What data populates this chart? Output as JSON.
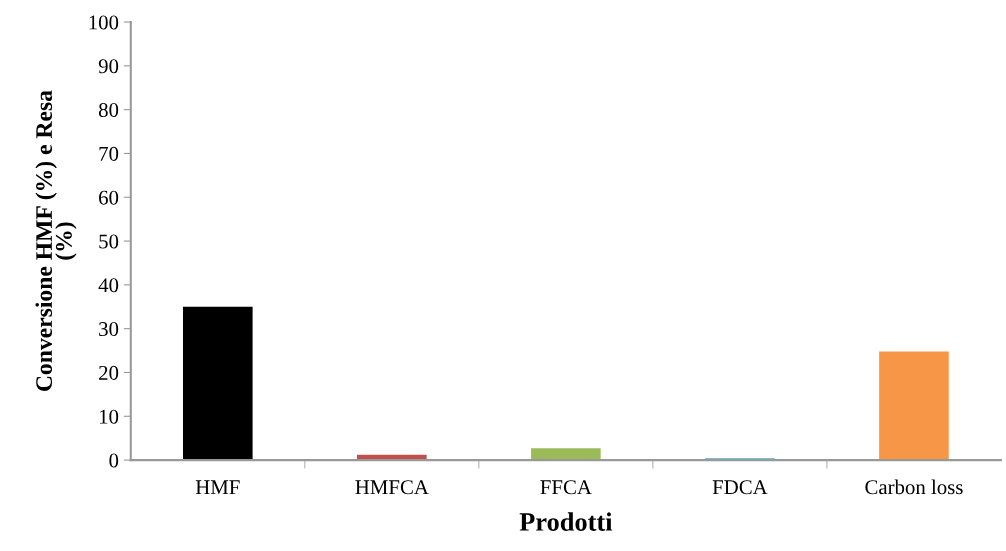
{
  "chart_data": {
    "type": "bar",
    "xlabel": "Prodotti",
    "ylabel": "Conversione HMF (%) e Resa\n(%)",
    "categories": [
      "HMF",
      "HMFCA",
      "FFCA",
      "FDCA",
      "Carbon loss"
    ],
    "values": [
      35,
      1.2,
      2.7,
      0.4,
      24.8
    ],
    "colors": [
      "#000000",
      "#c0504d",
      "#9bbb59",
      "#4bacc6",
      "#f79646"
    ],
    "ylim": [
      0,
      100
    ],
    "yticks": [
      0,
      10,
      20,
      30,
      40,
      50,
      60,
      70,
      80,
      90,
      100
    ],
    "grid": false
  }
}
